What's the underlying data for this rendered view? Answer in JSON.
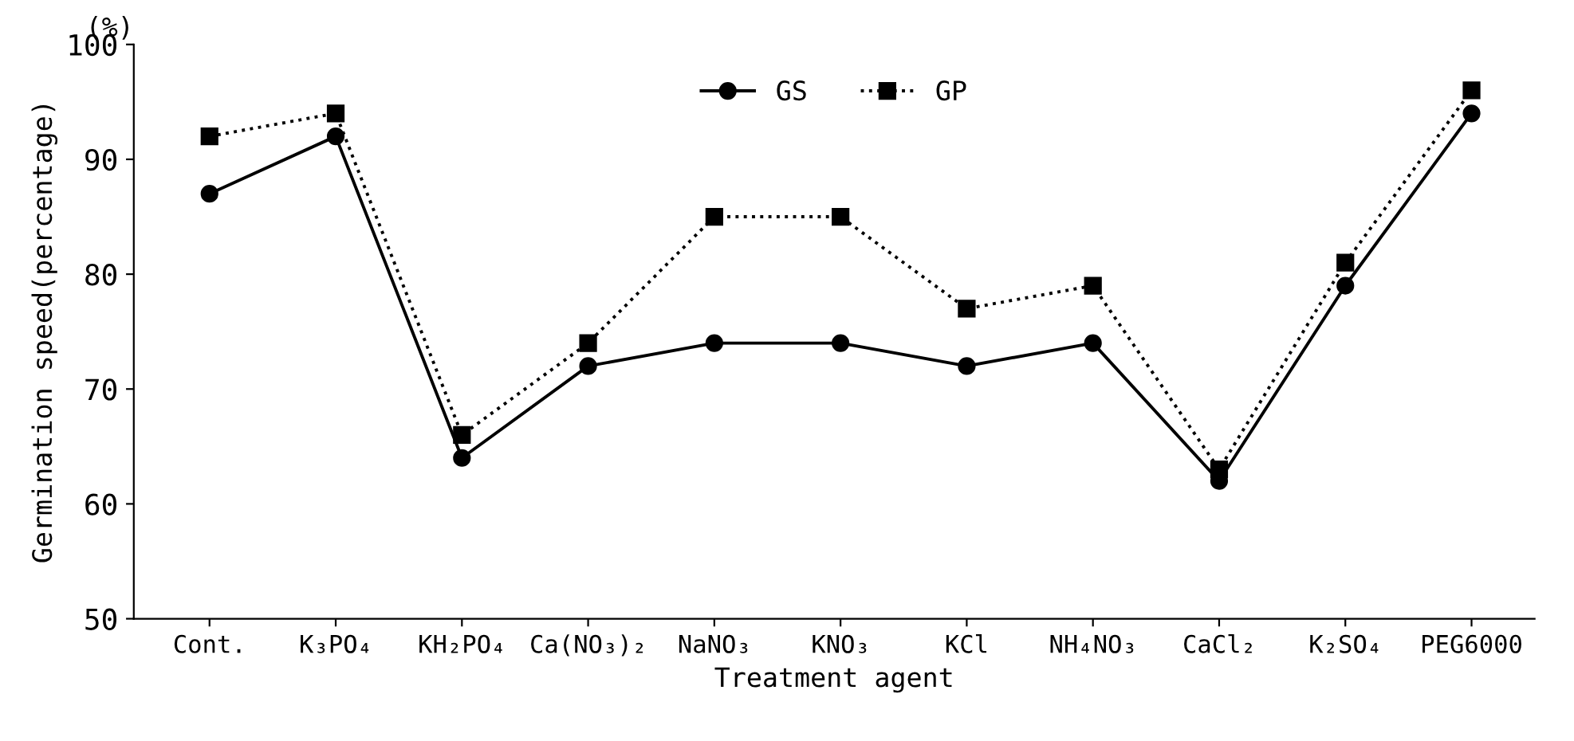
{
  "chart_data": {
    "type": "line",
    "xlabel": "Treatment agent",
    "ylabel": "Germination speed(percentage)",
    "annotations": [
      "(%)"
    ],
    "categories": [
      "Cont.",
      "K₃PO₄",
      "KH₂PO₄",
      "Ca(NO₃)₂",
      "NaNO₃",
      "KNO₃",
      "KCl",
      "NH₄NO₃",
      "CaCl₂",
      "K₂SO₄",
      "PEG6000"
    ],
    "series": [
      {
        "name": "GS",
        "color": "#000000",
        "marker": "circle",
        "line_style": "solid",
        "values": [
          87,
          92,
          64,
          72,
          74,
          74,
          72,
          74,
          62,
          79,
          94
        ]
      },
      {
        "name": "GP",
        "color": "#000000",
        "marker": "square",
        "line_style": "dotted",
        "values": [
          92,
          94,
          66,
          74,
          85,
          85,
          77,
          79,
          63,
          81,
          96
        ]
      }
    ],
    "ylim": [
      50,
      100
    ],
    "yticks": [
      50,
      60,
      70,
      80,
      90,
      100
    ],
    "grid": false,
    "legend": "top"
  }
}
